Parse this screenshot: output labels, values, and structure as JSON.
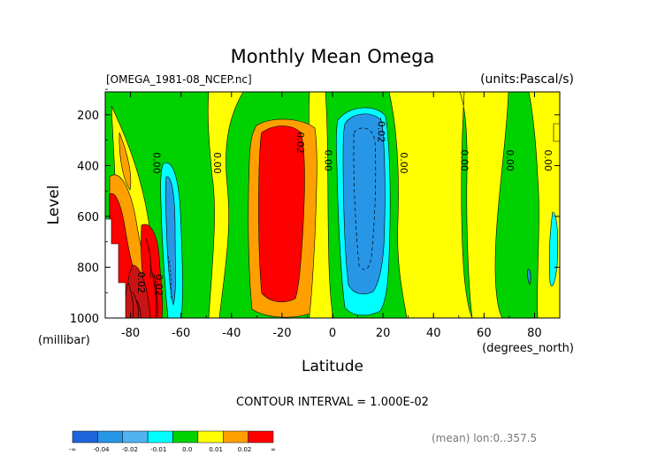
{
  "chart_data": {
    "type": "heatmap",
    "title": "Monthly Mean Omega",
    "file_label": "[OMEGA_1981-08_NCEP.nc]",
    "units_label": "(units:Pascal/s)",
    "xlabel": "Latitude",
    "xunit": "(degrees_north)",
    "ylabel": "Level",
    "yunit": "(millibar)",
    "xlim": [
      -90,
      90
    ],
    "ylim": [
      1000,
      100
    ],
    "x_ticks": [
      -80,
      -60,
      -40,
      -20,
      0,
      20,
      40,
      60,
      80
    ],
    "x_tick_labels": [
      "-80",
      "-60",
      "-40",
      "-20",
      "0",
      "20",
      "40",
      "60",
      "80"
    ],
    "y_ticks": [
      200,
      400,
      600,
      800,
      1000
    ],
    "y_tick_labels": [
      "200",
      "400",
      "600",
      "800",
      "1000"
    ],
    "contour_interval_text": "CONTOUR INTERVAL = 1.000E-02",
    "mean_note": "(mean) lon:0..357.5",
    "contour_labels": [
      {
        "x": -71,
        "level": 390,
        "text": "0.00"
      },
      {
        "x": -47,
        "level": 390,
        "text": "0.00"
      },
      {
        "x": -14,
        "level": 310,
        "text": "0.02"
      },
      {
        "x": -3,
        "level": 380,
        "text": "0.00"
      },
      {
        "x": 18,
        "level": 260,
        "text": "-0.02"
      },
      {
        "x": 27,
        "level": 390,
        "text": "0.00"
      },
      {
        "x": 51,
        "level": 380,
        "text": "0.00"
      },
      {
        "x": 69,
        "level": 380,
        "text": "0.00"
      },
      {
        "x": 84,
        "level": 380,
        "text": "0.00"
      },
      {
        "x": -77,
        "level": 860,
        "text": "0.02"
      },
      {
        "x": -70,
        "level": 870,
        "text": "0.02"
      }
    ],
    "colorbar": {
      "bins": [
        "#1e64dc",
        "#2896e6",
        "#50b4f0",
        "#00ffff",
        "#00d200",
        "#ffff00",
        "#ffa000",
        "#ff0000"
      ],
      "tick_labels": [
        "-∞",
        "-0.04",
        "-0.02",
        "-0.01",
        "0.0",
        "0.01",
        "0.02",
        "∞"
      ]
    },
    "regions": [
      {
        "name": "south-pole-white",
        "value_class": "missing",
        "color": "#ffffff"
      },
      {
        "name": "antarctic-descent-peak",
        "value_class": ">0.02",
        "color": "#c81414"
      },
      {
        "name": "southern-red-cell",
        "value_class": "0.02",
        "color": "#ff0000"
      },
      {
        "name": "southern-orange-band",
        "value_class": "0.01-0.02",
        "color": "#ffa000"
      },
      {
        "name": "southern-cyan-ascent",
        "value_class": "-0.01",
        "color": "#00ffff"
      },
      {
        "name": "subtropical-descent",
        "value_class": ">0.02",
        "color": "#ff0000"
      },
      {
        "name": "tropical-ascent",
        "value_class": "-0.02",
        "color": "#2896e6"
      },
      {
        "name": "northern-yellow-bands",
        "value_class": "0.0-0.01",
        "color": "#ffff00"
      },
      {
        "name": "green-background",
        "value_class": "-0.01-0.0",
        "color": "#00d200"
      }
    ]
  }
}
